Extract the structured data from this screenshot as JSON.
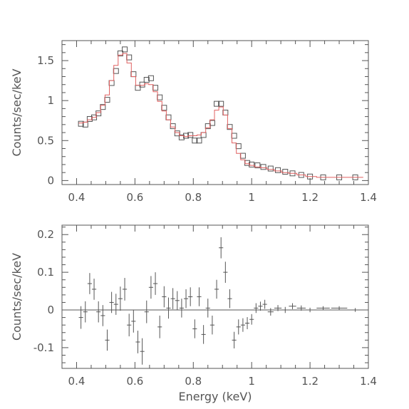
{
  "chart_data": [
    {
      "type": "scatter",
      "title": "",
      "xlabel": "",
      "ylabel": "Counts/sec/keV",
      "xlim": [
        0.35,
        1.4
      ],
      "ylim": [
        -0.05,
        1.75
      ],
      "xticks": [
        "0.4",
        "0.6",
        "0.8",
        "1",
        "1.2",
        "1.4"
      ],
      "yticks": [
        "0",
        "0.5",
        "1",
        "1.5"
      ],
      "series": [
        {
          "role": "data",
          "style": "open squares",
          "color": "#555555",
          "x": [
            0.415,
            0.43,
            0.445,
            0.46,
            0.475,
            0.49,
            0.505,
            0.52,
            0.535,
            0.55,
            0.565,
            0.58,
            0.595,
            0.61,
            0.625,
            0.64,
            0.655,
            0.67,
            0.685,
            0.7,
            0.715,
            0.73,
            0.745,
            0.76,
            0.775,
            0.79,
            0.805,
            0.82,
            0.835,
            0.85,
            0.865,
            0.88,
            0.895,
            0.91,
            0.925,
            0.94,
            0.955,
            0.97,
            0.985,
            1.0,
            1.02,
            1.04,
            1.065,
            1.09,
            1.115,
            1.14,
            1.17,
            1.2,
            1.245,
            1.3,
            1.355
          ],
          "y": [
            0.71,
            0.7,
            0.77,
            0.79,
            0.84,
            0.92,
            1.01,
            1.22,
            1.37,
            1.59,
            1.64,
            1.54,
            1.33,
            1.16,
            1.2,
            1.26,
            1.28,
            1.16,
            1.04,
            0.91,
            0.79,
            0.68,
            0.59,
            0.54,
            0.56,
            0.57,
            0.5,
            0.5,
            0.57,
            0.68,
            0.72,
            0.96,
            0.96,
            0.85,
            0.67,
            0.56,
            0.43,
            0.31,
            0.22,
            0.2,
            0.19,
            0.17,
            0.15,
            0.13,
            0.11,
            0.09,
            0.07,
            0.05,
            0.04,
            0.04,
            0.04
          ]
        },
        {
          "role": "model",
          "style": "step",
          "color": "#e06060",
          "x": [
            0.415,
            0.43,
            0.445,
            0.46,
            0.475,
            0.49,
            0.505,
            0.52,
            0.535,
            0.55,
            0.565,
            0.58,
            0.595,
            0.61,
            0.625,
            0.64,
            0.655,
            0.67,
            0.685,
            0.7,
            0.715,
            0.73,
            0.745,
            0.76,
            0.775,
            0.79,
            0.805,
            0.82,
            0.835,
            0.85,
            0.865,
            0.88,
            0.895,
            0.91,
            0.925,
            0.94,
            0.955,
            0.97,
            0.985,
            1.0,
            1.02,
            1.04,
            1.065,
            1.09,
            1.115,
            1.14,
            1.17,
            1.2,
            1.245,
            1.3,
            1.355
          ],
          "y": [
            0.72,
            0.73,
            0.76,
            0.79,
            0.85,
            0.94,
            1.07,
            1.25,
            1.44,
            1.57,
            1.59,
            1.47,
            1.3,
            1.19,
            1.19,
            1.21,
            1.2,
            1.11,
            0.99,
            0.87,
            0.76,
            0.67,
            0.6,
            0.56,
            0.55,
            0.56,
            0.56,
            0.57,
            0.6,
            0.66,
            0.76,
            0.88,
            0.92,
            0.82,
            0.65,
            0.47,
            0.34,
            0.26,
            0.21,
            0.19,
            0.17,
            0.16,
            0.14,
            0.12,
            0.1,
            0.09,
            0.07,
            0.05,
            0.04,
            0.04,
            0.04
          ]
        }
      ]
    },
    {
      "type": "scatter",
      "title": "",
      "xlabel": "Energy (keV)",
      "ylabel": "Counts/sec/keV",
      "xlim": [
        0.35,
        1.4
      ],
      "ylim": [
        -0.155,
        0.225
      ],
      "xticks": [
        "0.4",
        "0.6",
        "0.8",
        "1",
        "1.2",
        "1.4"
      ],
      "yticks": [
        "-0.1",
        "0",
        "0.1",
        "0.2"
      ],
      "zero_line": true,
      "series": [
        {
          "role": "residuals",
          "style": "crosses with error bars",
          "color": "#555555",
          "x": [
            0.415,
            0.43,
            0.445,
            0.46,
            0.475,
            0.49,
            0.505,
            0.52,
            0.535,
            0.55,
            0.565,
            0.58,
            0.595,
            0.61,
            0.625,
            0.64,
            0.655,
            0.67,
            0.685,
            0.7,
            0.715,
            0.73,
            0.745,
            0.76,
            0.775,
            0.79,
            0.805,
            0.82,
            0.835,
            0.85,
            0.865,
            0.88,
            0.895,
            0.91,
            0.925,
            0.94,
            0.955,
            0.97,
            0.985,
            1.0,
            1.015,
            1.03,
            1.045,
            1.065,
            1.09,
            1.115,
            1.14,
            1.17,
            1.2,
            1.245,
            1.3,
            1.355
          ],
          "y": [
            -0.02,
            -0.005,
            0.07,
            0.055,
            -0.005,
            -0.015,
            -0.08,
            0.02,
            0.015,
            0.03,
            0.055,
            -0.04,
            -0.03,
            -0.085,
            -0.11,
            -0.005,
            0.06,
            0.07,
            -0.045,
            0.035,
            0.005,
            0.03,
            0.025,
            0.005,
            0.03,
            0.035,
            -0.05,
            0.035,
            -0.065,
            0.005,
            -0.04,
            0.055,
            0.165,
            0.1,
            0.03,
            -0.08,
            -0.045,
            -0.04,
            -0.035,
            -0.025,
            0.005,
            0.01,
            0.015,
            -0.005,
            0.005,
            0.0,
            0.01,
            0.005,
            0.0,
            0.005,
            0.005,
            0.0
          ],
          "err": [
            0.03,
            0.028,
            0.028,
            0.028,
            0.028,
            0.028,
            0.028,
            0.028,
            0.028,
            0.032,
            0.03,
            0.03,
            0.03,
            0.03,
            0.035,
            0.03,
            0.03,
            0.03,
            0.03,
            0.028,
            0.028,
            0.028,
            0.025,
            0.025,
            0.025,
            0.025,
            0.025,
            0.025,
            0.025,
            0.025,
            0.025,
            0.025,
            0.028,
            0.028,
            0.025,
            0.022,
            0.02,
            0.018,
            0.016,
            0.014,
            0.013,
            0.012,
            0.012,
            0.01,
            0.008,
            0.008,
            0.008,
            0.007,
            0.006,
            0.005,
            0.005,
            0.005
          ]
        }
      ]
    }
  ]
}
